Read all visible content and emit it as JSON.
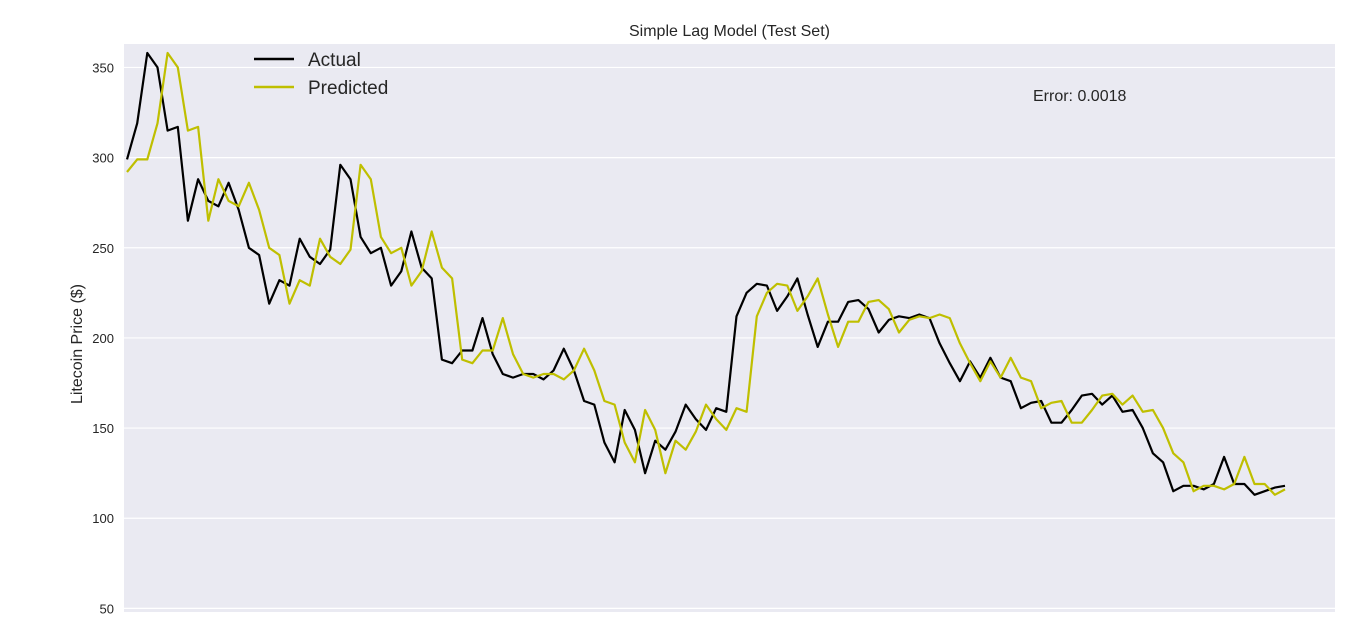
{
  "chart_data": {
    "type": "line",
    "title": "Simple Lag Model (Test Set)",
    "xlabel": "",
    "ylabel": "Litecoin Price ($)",
    "ylim": [
      48,
      363
    ],
    "yticks": [
      50,
      100,
      150,
      200,
      250,
      300,
      350
    ],
    "grid": true,
    "legend_position": "top-left",
    "annotation": "Error: 0.0018",
    "colors": {
      "background": "#EAEAF2",
      "grid": "#FFFFFF",
      "actual": "#000000",
      "predicted": "#BFBF00"
    },
    "x": [
      0,
      1,
      2,
      3,
      4,
      5,
      6,
      7,
      8,
      9,
      10,
      11,
      12,
      13,
      14,
      15,
      16,
      17,
      18,
      19,
      20,
      21,
      22,
      23,
      24,
      25,
      26,
      27,
      28,
      29,
      30,
      31,
      32,
      33,
      34,
      35,
      36,
      37,
      38,
      39,
      40,
      41,
      42,
      43,
      44,
      45,
      46,
      47,
      48,
      49,
      50,
      51,
      52,
      53,
      54,
      55,
      56,
      57,
      58,
      59,
      60,
      61,
      62,
      63,
      64,
      65,
      66,
      67,
      68,
      69,
      70,
      71,
      72,
      73,
      74,
      75,
      76,
      77,
      78,
      79,
      80,
      81,
      82,
      83,
      84,
      85,
      86,
      87,
      88,
      89,
      90,
      91,
      92,
      93,
      94,
      95,
      96,
      97,
      98,
      99,
      100,
      101,
      102,
      103,
      104,
      105,
      106,
      107,
      108,
      109,
      110,
      111,
      112,
      113,
      114
    ],
    "series": [
      {
        "name": "Actual",
        "values": [
          299,
          319,
          358,
          350,
          315,
          317,
          265,
          288,
          276,
          273,
          286,
          271,
          250,
          246,
          219,
          232,
          229,
          255,
          245,
          241,
          249,
          296,
          288,
          256,
          247,
          250,
          229,
          237,
          259,
          239,
          233,
          188,
          186,
          193,
          193,
          211,
          191,
          180,
          178,
          180,
          180,
          177,
          182,
          194,
          182,
          165,
          163,
          142,
          131,
          160,
          149,
          125,
          143,
          138,
          148,
          163,
          155,
          149,
          161,
          159,
          212,
          225,
          230,
          229,
          215,
          223,
          233,
          213,
          195,
          209,
          209,
          220,
          221,
          216,
          203,
          210,
          212,
          211,
          213,
          211,
          197,
          186,
          176,
          187,
          178,
          189,
          178,
          176,
          161,
          164,
          165,
          153,
          153,
          160,
          168,
          169,
          163,
          168,
          159,
          160,
          150,
          136,
          131,
          115,
          118,
          118,
          116,
          119,
          134,
          119,
          119,
          113,
          115,
          117,
          118
        ]
      },
      {
        "name": "Predicted",
        "values": [
          292,
          299,
          299,
          319,
          358,
          350,
          315,
          317,
          265,
          288,
          276,
          273,
          286,
          271,
          250,
          246,
          219,
          232,
          229,
          255,
          245,
          241,
          249,
          296,
          288,
          256,
          247,
          250,
          229,
          237,
          259,
          239,
          233,
          188,
          186,
          193,
          193,
          211,
          191,
          180,
          178,
          180,
          180,
          177,
          182,
          194,
          182,
          165,
          163,
          142,
          131,
          160,
          149,
          125,
          143,
          138,
          148,
          163,
          155,
          149,
          161,
          159,
          212,
          225,
          230,
          229,
          215,
          223,
          233,
          213,
          195,
          209,
          209,
          220,
          221,
          216,
          203,
          210,
          212,
          211,
          213,
          211,
          197,
          186,
          176,
          187,
          178,
          189,
          178,
          176,
          161,
          164,
          165,
          153,
          153,
          160,
          168,
          169,
          163,
          168,
          159,
          160,
          150,
          136,
          131,
          115,
          118,
          118,
          116,
          119,
          134,
          119,
          119,
          113,
          116
        ]
      }
    ]
  }
}
